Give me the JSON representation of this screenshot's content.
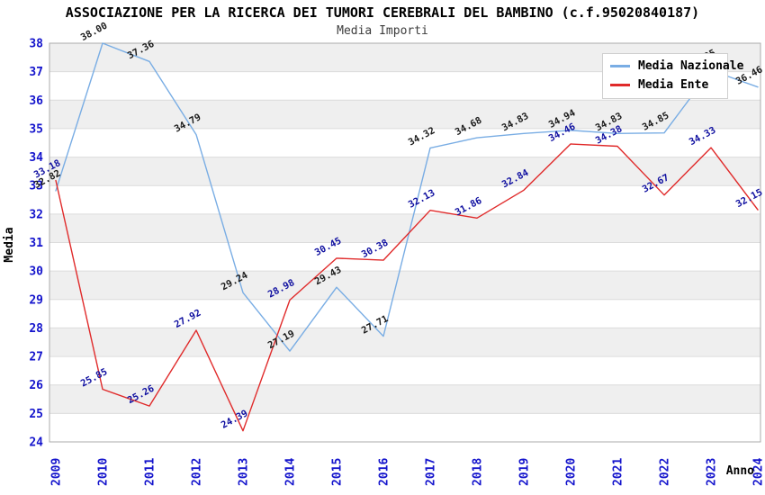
{
  "title": "ASSOCIAZIONE PER LA RICERCA DEI TUMORI CEREBRALI DEL BAMBINO (c.f.95020840187)",
  "subtitle": "Media Importi",
  "axes": {
    "x_label": "Anno",
    "y_label": "Media",
    "x_ticks": [
      "2009",
      "2010",
      "2011",
      "2012",
      "2013",
      "2014",
      "2015",
      "2016",
      "2017",
      "2018",
      "2019",
      "2020",
      "2021",
      "2022",
      "2023",
      "2024"
    ],
    "y_ticks": [
      24,
      25,
      26,
      27,
      28,
      29,
      30,
      31,
      32,
      33,
      34,
      35,
      36,
      37,
      38
    ],
    "y_min": 24,
    "y_max": 38
  },
  "legend": {
    "position": "top-right",
    "items": [
      {
        "label": "Media Nazionale",
        "color": "#79ade4"
      },
      {
        "label": "Media Ente",
        "color": "#e02a2a"
      }
    ]
  },
  "chart_data": {
    "type": "line",
    "x": [
      2009,
      2010,
      2011,
      2012,
      2013,
      2014,
      2015,
      2016,
      2017,
      2018,
      2019,
      2020,
      2021,
      2022,
      2023,
      2024
    ],
    "series": [
      {
        "name": "Media Nazionale",
        "color": "#79ade4",
        "label_color": "#1a1a1a",
        "values": [
          32.82,
          38.0,
          37.36,
          34.79,
          29.24,
          27.19,
          29.43,
          27.71,
          34.32,
          34.68,
          34.83,
          34.94,
          34.83,
          34.85,
          37.05,
          36.46
        ]
      },
      {
        "name": "Media Ente",
        "color": "#e02a2a",
        "label_color": "#0f0fa0",
        "values": [
          33.18,
          25.85,
          25.26,
          27.92,
          24.39,
          28.98,
          30.45,
          30.38,
          32.13,
          31.86,
          32.84,
          34.46,
          34.38,
          32.67,
          34.33,
          32.15
        ]
      }
    ],
    "title": "Media Importi",
    "xlabel": "Anno",
    "ylabel": "Media",
    "ylim": [
      24,
      38
    ],
    "grid": true,
    "legend_position": "top-right",
    "value_labels": true
  },
  "style": {
    "band_color": "#efefef",
    "grid_color": "#dcdcdc",
    "border_color": "#ababab",
    "axis_tick_color": "#1414cc",
    "axis_title_color": "#000000",
    "background": "#ffffff"
  }
}
